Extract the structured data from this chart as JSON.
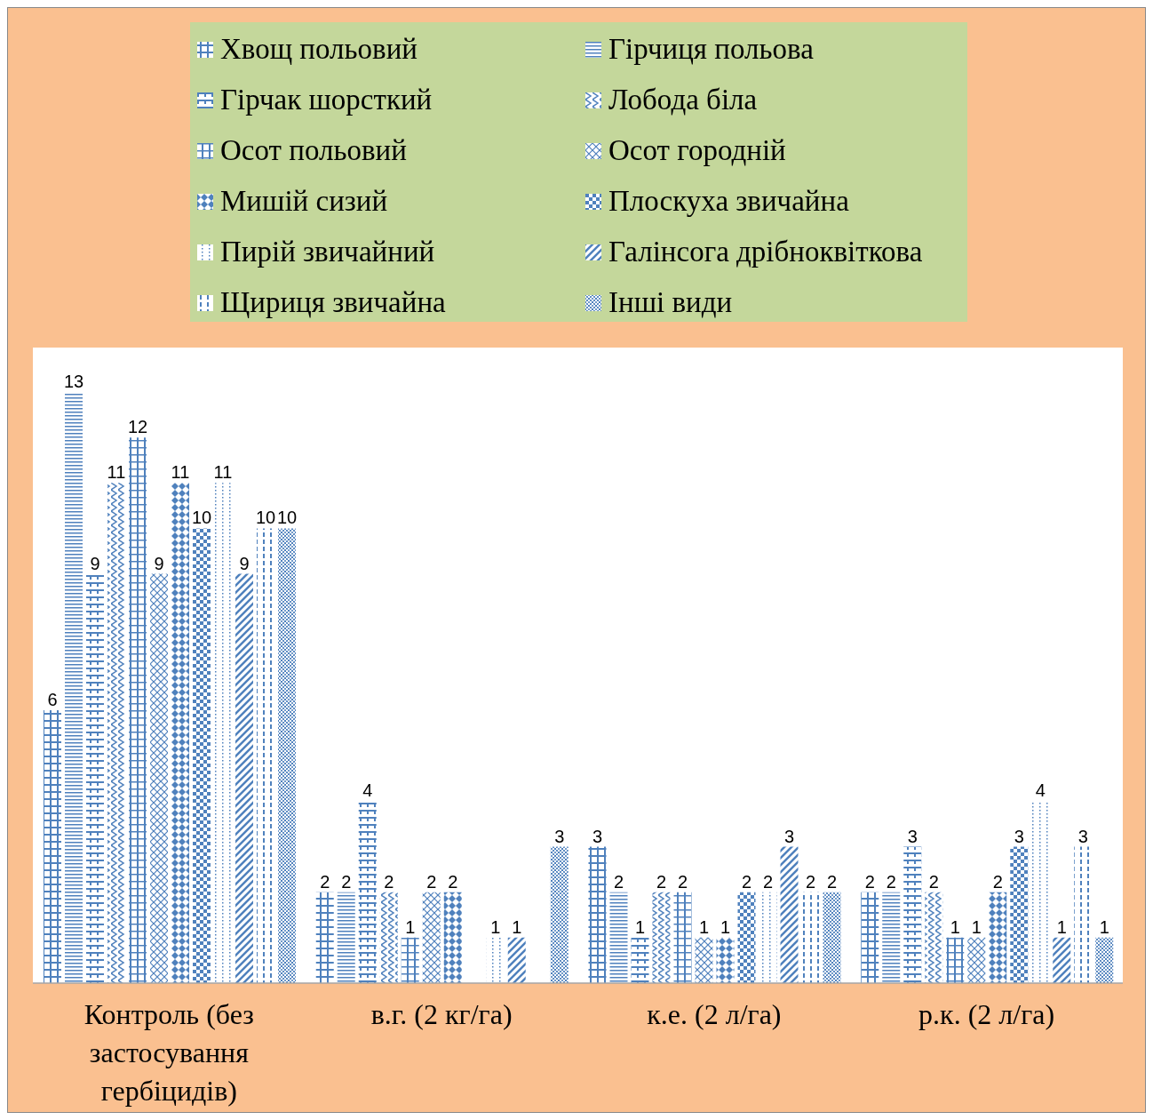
{
  "chart_data": {
    "type": "bar",
    "categories": [
      "Контроль (без застосування гербіцидів)",
      "в.г. (2 кг/га)",
      "к.е. (2 л/га)",
      "р.к. (2 л/га)"
    ],
    "series": [
      {
        "name": "Хвощ польовий",
        "color": "#4f81bd",
        "values": [
          6,
          2,
          3,
          2
        ]
      },
      {
        "name": "Гірчиця польова",
        "color": "#4f81bd",
        "values": [
          13,
          2,
          2,
          2
        ]
      },
      {
        "name": "Гірчак шорсткий",
        "color": "#4f81bd",
        "values": [
          9,
          4,
          1,
          3
        ]
      },
      {
        "name": "Лобода біла",
        "color": "#4f81bd",
        "values": [
          11,
          2,
          2,
          2
        ]
      },
      {
        "name": "Осот польовий",
        "color": "#4f81bd",
        "values": [
          12,
          1,
          2,
          1
        ]
      },
      {
        "name": "Осот городній",
        "color": "#4f81bd",
        "values": [
          9,
          2,
          1,
          1
        ]
      },
      {
        "name": "Мишій сизий",
        "color": "#4f81bd",
        "values": [
          11,
          2,
          1,
          2
        ]
      },
      {
        "name": "Плоскуха звичайна",
        "color": "#4f81bd",
        "values": [
          10,
          null,
          2,
          3
        ]
      },
      {
        "name": "Пирій звичайний",
        "color": "#4f81bd",
        "values": [
          11,
          1,
          2,
          4
        ]
      },
      {
        "name": "Галінсога дрібноквіткова",
        "color": "#4f81bd",
        "values": [
          9,
          1,
          3,
          1
        ]
      },
      {
        "name": "Щириця звичайна",
        "color": "#4f81bd",
        "values": [
          10,
          null,
          2,
          3
        ]
      },
      {
        "name": "Інші види",
        "color": "#4f81bd",
        "values": [
          10,
          3,
          2,
          1
        ]
      }
    ],
    "data_labels": true,
    "legend": "top",
    "grid": false
  }
}
